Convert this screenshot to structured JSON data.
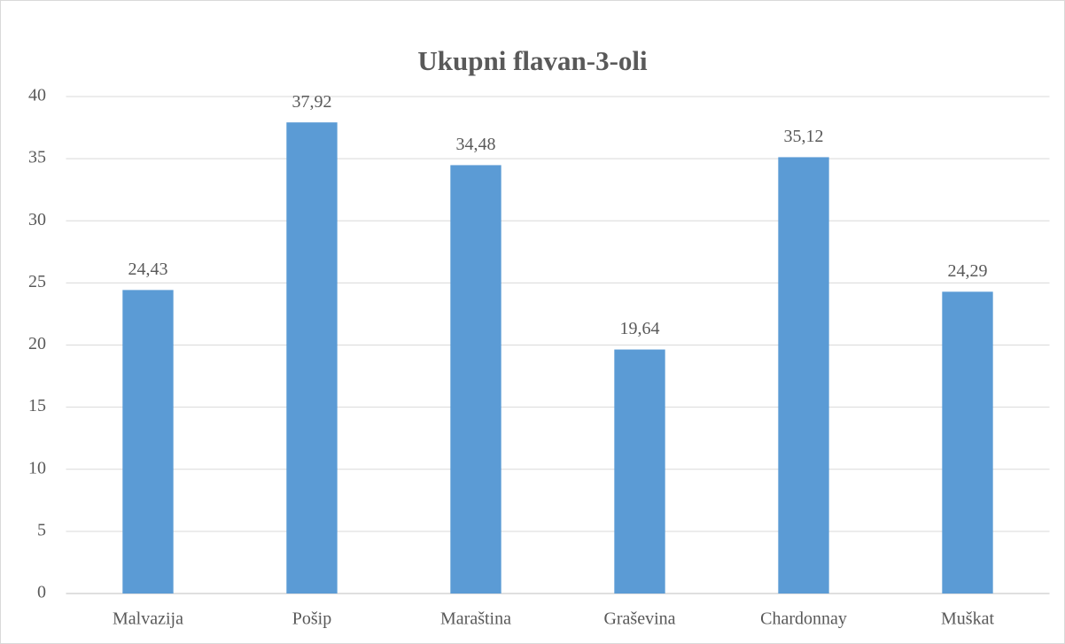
{
  "chart_data": {
    "type": "bar",
    "title": "Ukupni flavan-3-oli",
    "categories": [
      "Malvazija",
      "Pošip",
      "Maraština",
      "Graševina",
      "Chardonnay",
      "Muškat"
    ],
    "values": [
      24.43,
      37.92,
      34.48,
      19.64,
      35.12,
      24.29
    ],
    "value_labels": [
      "24,43",
      "37,92",
      "34,48",
      "19,64",
      "35,12",
      "24,29"
    ],
    "color": "#5b9bd5",
    "ylim": [
      0,
      40
    ],
    "yticks": [
      0,
      5,
      10,
      15,
      20,
      25,
      30,
      35,
      40
    ],
    "grid": true
  }
}
